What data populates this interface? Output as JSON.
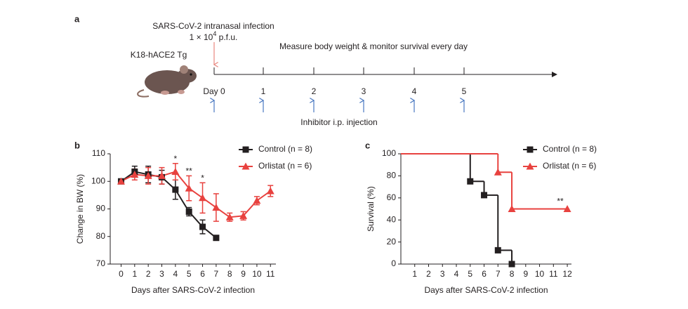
{
  "panel_a": {
    "label": "a",
    "infection": "SARS-CoV-2 intranasal infection",
    "dose_prefix": "1 × 10",
    "dose_exp": "4",
    "dose_unit": " p.f.u.",
    "mouse": "K18-hACE2 Tg",
    "measure": "Measure body weight & monitor survival every day",
    "days": [
      "Day 0",
      "1",
      "2",
      "3",
      "4",
      "5"
    ],
    "injection": "Inhibitor i.p. injection"
  },
  "chart_data": [
    {
      "type": "line",
      "panel": "b",
      "xlabel": "Days after SARS-CoV-2 infection",
      "ylabel": "Change in BW (%)",
      "x": [
        0,
        1,
        2,
        3,
        4,
        5,
        6,
        7,
        8,
        9,
        10,
        11
      ],
      "series": [
        {
          "name": "Control (n = 8)",
          "color": "#231f20",
          "marker": "square",
          "values": [
            100,
            103.5,
            102.5,
            101.5,
            97,
            89,
            83.5,
            79.5,
            null,
            null,
            null,
            null
          ],
          "errors": [
            0,
            2,
            3,
            2.5,
            3.5,
            1.5,
            2.5,
            0,
            null,
            null,
            null,
            null
          ]
        },
        {
          "name": "Orlistat (n = 6)",
          "color": "#e8423f",
          "marker": "triangle",
          "values": [
            100,
            102.5,
            102,
            102,
            103.5,
            97.5,
            94,
            90.5,
            87,
            87.5,
            93,
            96.5
          ],
          "errors": [
            0,
            2,
            3,
            3,
            3,
            4.5,
            5.5,
            5,
            1.5,
            1.5,
            1.5,
            2
          ]
        }
      ],
      "annotations": [
        {
          "text": "*",
          "x": 4
        },
        {
          "text": "**",
          "x": 5
        },
        {
          "text": "*",
          "x": 6
        }
      ],
      "xlim": [
        -0.8,
        11.4
      ],
      "ylim": [
        70,
        110
      ],
      "xticks": [
        0,
        1,
        2,
        3,
        4,
        5,
        6,
        7,
        8,
        9,
        10,
        11
      ],
      "yticks": [
        70,
        80,
        90,
        100,
        110
      ]
    },
    {
      "type": "step",
      "panel": "c",
      "xlabel": "Days after SARS-CoV-2 infection",
      "ylabel": "Survival (%)",
      "series": [
        {
          "name": "Control (n = 8)",
          "color": "#231f20",
          "marker": "square",
          "x": [
            0,
            5,
            6,
            7,
            8
          ],
          "values": [
            100,
            75,
            62.5,
            12.5,
            0
          ]
        },
        {
          "name": "Orlistat (n = 6)",
          "color": "#e8423f",
          "marker": "triangle",
          "x": [
            0,
            7,
            8,
            12
          ],
          "values": [
            100,
            83.3,
            50,
            50
          ]
        }
      ],
      "annotations": [
        {
          "text": "**",
          "x": 12
        }
      ],
      "xlim": [
        0,
        12.3
      ],
      "ylim": [
        0,
        100
      ],
      "xticks": [
        1,
        2,
        3,
        4,
        5,
        6,
        7,
        8,
        9,
        10,
        11,
        12
      ],
      "yticks": [
        0,
        20,
        40,
        60,
        80,
        100
      ]
    }
  ]
}
